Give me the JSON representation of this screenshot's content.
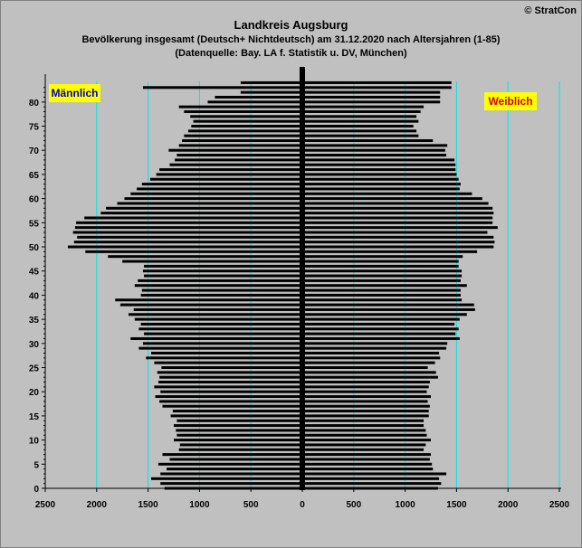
{
  "copyright": "© StratCon",
  "title": "Landkreis Augsburg",
  "subtitle1": "Bevölkerung  insgesamt (Deutsch+ Nichtdeutsch) am 31.12.2020 nach Altersjahren (1-85)",
  "subtitle2": "(Datenquelle: Bay. LA f. Statistik u. DV, München)",
  "colors": {
    "background": "#c0c0c0",
    "bars": "#000000",
    "gridlines": "#00e5e5",
    "label_box": "#ffff00",
    "male_label": "#0000cc",
    "female_label": "#cc0000"
  },
  "chart_data": {
    "type": "bar",
    "orientation": "horizontal-population-pyramid",
    "male_label": "Männlich",
    "female_label": "Weiblich",
    "x_ticks": [
      "2500",
      "2000",
      "1500",
      "1000",
      "500",
      "0",
      "500",
      "1000",
      "1500",
      "2000",
      "2500"
    ],
    "y_ticks": [
      "0",
      "5",
      "10",
      "15",
      "20",
      "25",
      "30",
      "35",
      "40",
      "45",
      "50",
      "55",
      "60",
      "65",
      "70",
      "75",
      "80"
    ],
    "xlim": [
      -2500,
      2500
    ],
    "ylim": [
      0,
      83
    ],
    "grid": "vertical",
    "ages": [
      0,
      1,
      2,
      3,
      4,
      5,
      6,
      7,
      8,
      9,
      10,
      11,
      12,
      13,
      14,
      15,
      16,
      17,
      18,
      19,
      20,
      21,
      22,
      23,
      24,
      25,
      26,
      27,
      28,
      29,
      30,
      31,
      32,
      33,
      34,
      35,
      36,
      37,
      38,
      39,
      40,
      41,
      42,
      43,
      44,
      45,
      46,
      47,
      48,
      49,
      50,
      51,
      52,
      53,
      54,
      55,
      56,
      57,
      58,
      59,
      60,
      61,
      62,
      63,
      64,
      65,
      66,
      67,
      68,
      69,
      70,
      71,
      72,
      73,
      74,
      75,
      76,
      77,
      78,
      79,
      80,
      81,
      82,
      83,
      84,
      85
    ],
    "series": [
      {
        "name": "Männlich",
        "values": [
          1340,
          1380,
          1470,
          1380,
          1320,
          1400,
          1290,
          1360,
          1200,
          1190,
          1250,
          1220,
          1230,
          1250,
          1220,
          1280,
          1260,
          1360,
          1390,
          1430,
          1380,
          1440,
          1400,
          1390,
          1410,
          1370,
          1440,
          1520,
          1470,
          1590,
          1550,
          1670,
          1540,
          1590,
          1570,
          1630,
          1690,
          1640,
          1770,
          1820,
          1570,
          1560,
          1630,
          1600,
          1540,
          1550,
          1540,
          1750,
          1890,
          2110,
          2280,
          2220,
          2190,
          2230,
          2210,
          2200,
          2120,
          1960,
          1910,
          1800,
          1730,
          1670,
          1610,
          1560,
          1480,
          1420,
          1390,
          1290,
          1240,
          1220,
          1300,
          1200,
          1170,
          1150,
          1110,
          1080,
          1060,
          1090,
          1150,
          1200,
          920,
          850,
          600,
          1550,
          600,
          0
        ]
      },
      {
        "name": "Weiblich",
        "values": [
          1320,
          1350,
          1330,
          1400,
          1270,
          1260,
          1240,
          1250,
          1180,
          1200,
          1250,
          1210,
          1200,
          1180,
          1180,
          1230,
          1230,
          1240,
          1220,
          1250,
          1210,
          1230,
          1240,
          1320,
          1300,
          1220,
          1290,
          1340,
          1330,
          1400,
          1410,
          1530,
          1490,
          1520,
          1480,
          1530,
          1600,
          1680,
          1670,
          1550,
          1540,
          1540,
          1600,
          1540,
          1550,
          1550,
          1520,
          1520,
          1560,
          1700,
          1860,
          1870,
          1860,
          1800,
          1900,
          1850,
          1850,
          1860,
          1850,
          1810,
          1750,
          1650,
          1530,
          1540,
          1520,
          1500,
          1490,
          1490,
          1480,
          1400,
          1390,
          1410,
          1270,
          1130,
          1110,
          1080,
          1130,
          1110,
          1150,
          1180,
          1340,
          1340,
          1340,
          1450,
          1450,
          0
        ]
      }
    ]
  }
}
